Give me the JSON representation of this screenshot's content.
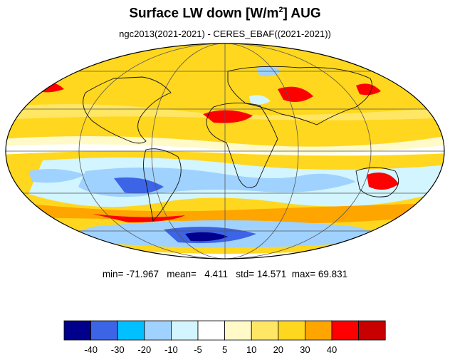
{
  "title": {
    "main": "Surface LW down [W/m",
    "sup": "2",
    "close": "]  AUG"
  },
  "subtitle": "ngc2013(2021-2021) - CERES_EBAF((2021-2021))",
  "stats": {
    "min_label": "min=",
    "min": "-71.967",
    "mean_label": "mean=",
    "mean": "4.411",
    "std_label": "std=",
    "std": "14.571",
    "max_label": "max=",
    "max": "69.831"
  },
  "colorbar": {
    "colors": [
      "#00008c",
      "#3c64e6",
      "#00c0ff",
      "#a0d2ff",
      "#d2f5ff",
      "#ffffff",
      "#fffac8",
      "#ffe664",
      "#ffd71e",
      "#ffa500",
      "#ff0000",
      "#c80000"
    ],
    "labels": [
      "-40",
      "-30",
      "-20",
      "-10",
      "-5",
      "5",
      "10",
      "20",
      "30",
      "40"
    ]
  },
  "map": {
    "projection": "mollweide",
    "ocean_color": "#ffd71e",
    "grid_color": "#555555",
    "coast_color": "#111111"
  }
}
